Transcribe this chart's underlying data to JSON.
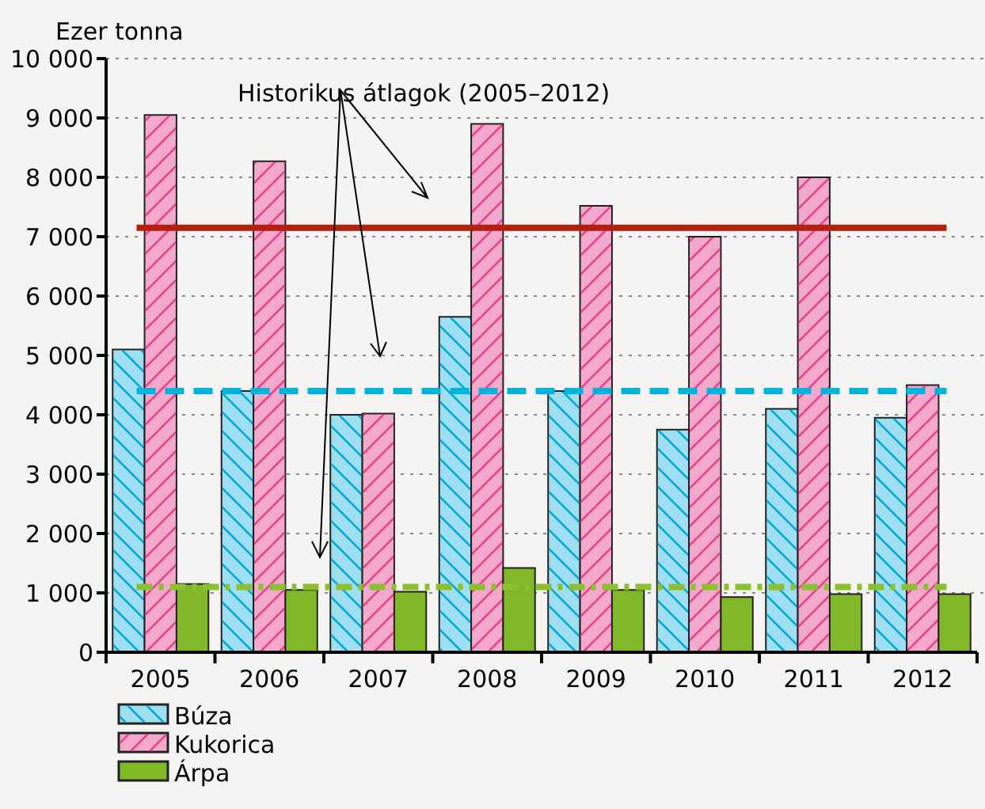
{
  "chart_data": {
    "type": "bar",
    "ylabel": "Ezer tonna",
    "categories": [
      "2005",
      "2006",
      "2007",
      "2008",
      "2009",
      "2010",
      "2011",
      "2012"
    ],
    "series": [
      {
        "name": "Búza",
        "color": "#9ee0f2",
        "values": [
          5100,
          4400,
          4000,
          5650,
          4400,
          3750,
          4100,
          3950
        ]
      },
      {
        "name": "Kukorica",
        "color": "#f4a8cc",
        "values": [
          9050,
          8270,
          4020,
          8900,
          7520,
          7000,
          8000,
          4500
        ]
      },
      {
        "name": "Árpa",
        "color": "#80b828",
        "values": [
          1150,
          1050,
          1020,
          1420,
          1050,
          930,
          980,
          980
        ]
      }
    ],
    "ylim": [
      0,
      10000
    ],
    "yticks": [
      0,
      {
        "value": 1000,
        "label": "1 000"
      },
      {
        "value": 2000,
        "label": "2 000"
      },
      {
        "value": 3000,
        "label": "3 000"
      },
      {
        "value": 4000,
        "label": "4 000"
      },
      {
        "value": 5000,
        "label": "5 000"
      },
      {
        "value": 6000,
        "label": "6 000"
      },
      {
        "value": 7000,
        "label": "7 000"
      },
      {
        "value": 8000,
        "label": "8 000"
      },
      {
        "value": 9000,
        "label": "9 000"
      },
      {
        "value": 10000,
        "label": "10 000"
      }
    ],
    "grid": "y",
    "legend": "bottom left",
    "ref_lines": [
      {
        "axis": "y",
        "value": 7150,
        "color": "#b22010",
        "line_style": "solid"
      },
      {
        "axis": "y",
        "value": 4400,
        "color": "#00b4e0",
        "line_style": "dashed"
      },
      {
        "axis": "y",
        "value": 1100,
        "color": "#8cc030",
        "line_style": "dashdot"
      }
    ],
    "annotations": [
      "Historikus átlagok (2005–2012)"
    ]
  }
}
